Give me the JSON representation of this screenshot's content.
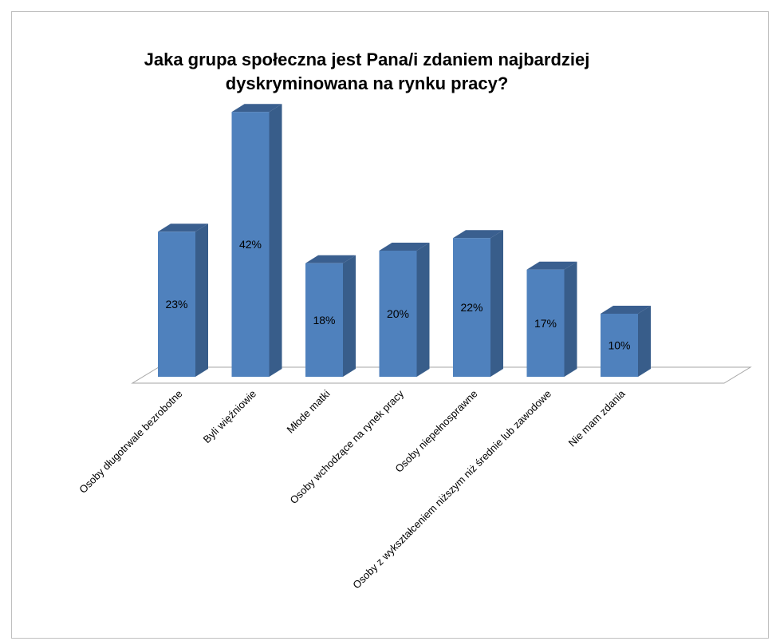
{
  "chart_data": {
    "type": "bar",
    "title": "Jaka grupa społeczna jest Pana/i zdaniem najbardziej\ndyskryminowana na rynku pracy?",
    "categories": [
      "Osoby długotrwale bezrobotne",
      "Byli więźniowie",
      "Młode matki",
      "Osoby wchodzące na rynek pracy",
      "Osoby niepełnosprawne",
      "Osoby z wykształceniem niższym niż średnie lub zawodowe",
      "Nie mam zdania"
    ],
    "values": [
      23,
      42,
      18,
      20,
      22,
      17,
      10
    ],
    "data_labels": [
      "23%",
      "42%",
      "18%",
      "20%",
      "22%",
      "17%",
      "10%"
    ],
    "xlabel": "",
    "ylabel": "",
    "ylim": [
      0,
      45
    ],
    "grid": false,
    "legend": "none",
    "style": "3d-column",
    "colors": {
      "bar_front": "#4f81bd",
      "bar_side": "#385d8a",
      "bar_top": "#3a5f8f",
      "floor": "#a6a6a6"
    }
  }
}
